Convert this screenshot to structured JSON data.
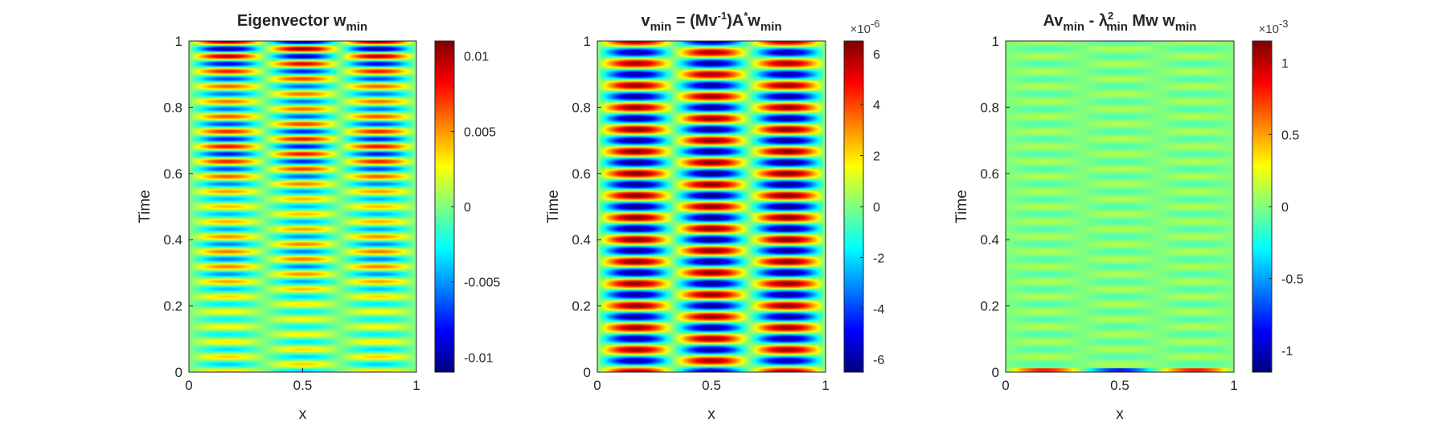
{
  "chart_data": [
    {
      "type": "heatmap",
      "title": {
        "base": "Eigenvector w",
        "sub": "min"
      },
      "xlabel": "x",
      "ylabel": "Time",
      "xlim": [
        0,
        1
      ],
      "ylim": [
        0,
        1
      ],
      "xticks": [
        "0",
        "0.5",
        "1"
      ],
      "yticks": [
        "0",
        "0.2",
        "0.4",
        "0.6",
        "0.8",
        "1"
      ],
      "colormap": "jet",
      "clim": [
        -0.011,
        0.011
      ],
      "colorbar_ticks": [
        {
          "value": 0.01,
          "label": "0.01"
        },
        {
          "value": 0.005,
          "label": "0.005"
        },
        {
          "value": 0,
          "label": "0"
        },
        {
          "value": -0.005,
          "label": "-0.005"
        },
        {
          "value": -0.01,
          "label": "-0.01"
        }
      ],
      "colorbar_exponent": "",
      "field": {
        "x_lobes": 3,
        "time_bands": 22,
        "amplitude": 0.011,
        "pattern": "envelope-modulated oscillation, larger amplitude near t=1"
      }
    },
    {
      "type": "heatmap",
      "title": {
        "base": "v",
        "sub": "min",
        "rest1": " = (Mv",
        "sup1": "-1",
        "rest2": ")A",
        "sup2": "*",
        "rest3": "w",
        "sub2": "min"
      },
      "xlabel": "x",
      "ylabel": "Time",
      "xlim": [
        0,
        1
      ],
      "ylim": [
        0,
        1
      ],
      "xticks": [
        "0",
        "0.5",
        "1"
      ],
      "yticks": [
        "0",
        "0.2",
        "0.4",
        "0.6",
        "0.8",
        "1"
      ],
      "colormap": "jet",
      "clim": [
        -6.5,
        6.5
      ],
      "colorbar_ticks": [
        {
          "value": 6,
          "label": "6"
        },
        {
          "value": 4,
          "label": "4"
        },
        {
          "value": 2,
          "label": "2"
        },
        {
          "value": 0,
          "label": "0"
        },
        {
          "value": -2,
          "label": "-2"
        },
        {
          "value": -4,
          "label": "-4"
        },
        {
          "value": -6,
          "label": "-6"
        }
      ],
      "colorbar_exponent": {
        "base": "×10",
        "exp": "-6"
      },
      "field": {
        "x_lobes": 3,
        "time_bands": 15,
        "amplitude": 6.5,
        "pattern": "regular oscillation, alternating sign between x-lobes"
      }
    },
    {
      "type": "heatmap",
      "title": {
        "base": "Av",
        "sub": "min",
        "rest1": " - λ",
        "sup1": "2",
        "sub1b": "min",
        "rest2": " Mw w",
        "sub2": "min"
      },
      "xlabel": "x",
      "ylabel": "Time",
      "xlim": [
        0,
        1
      ],
      "ylim": [
        0,
        1
      ],
      "xticks": [
        "0",
        "0.5",
        "1"
      ],
      "yticks": [
        "0",
        "0.2",
        "0.4",
        "0.6",
        "0.8",
        "1"
      ],
      "colormap": "jet",
      "clim": [
        -1.15,
        1.15
      ],
      "colorbar_ticks": [
        {
          "value": 1,
          "label": "1"
        },
        {
          "value": 0.5,
          "label": "0.5"
        },
        {
          "value": 0,
          "label": "0"
        },
        {
          "value": -0.5,
          "label": "-0.5"
        },
        {
          "value": -1,
          "label": "-1"
        }
      ],
      "colorbar_exponent": {
        "base": "×10",
        "exp": "-3"
      },
      "field": {
        "x_lobes": 3,
        "time_bands": 22,
        "amplitude": 0.12,
        "pattern": "near-zero residual, faint bands, slightly stronger at t=0"
      }
    }
  ]
}
